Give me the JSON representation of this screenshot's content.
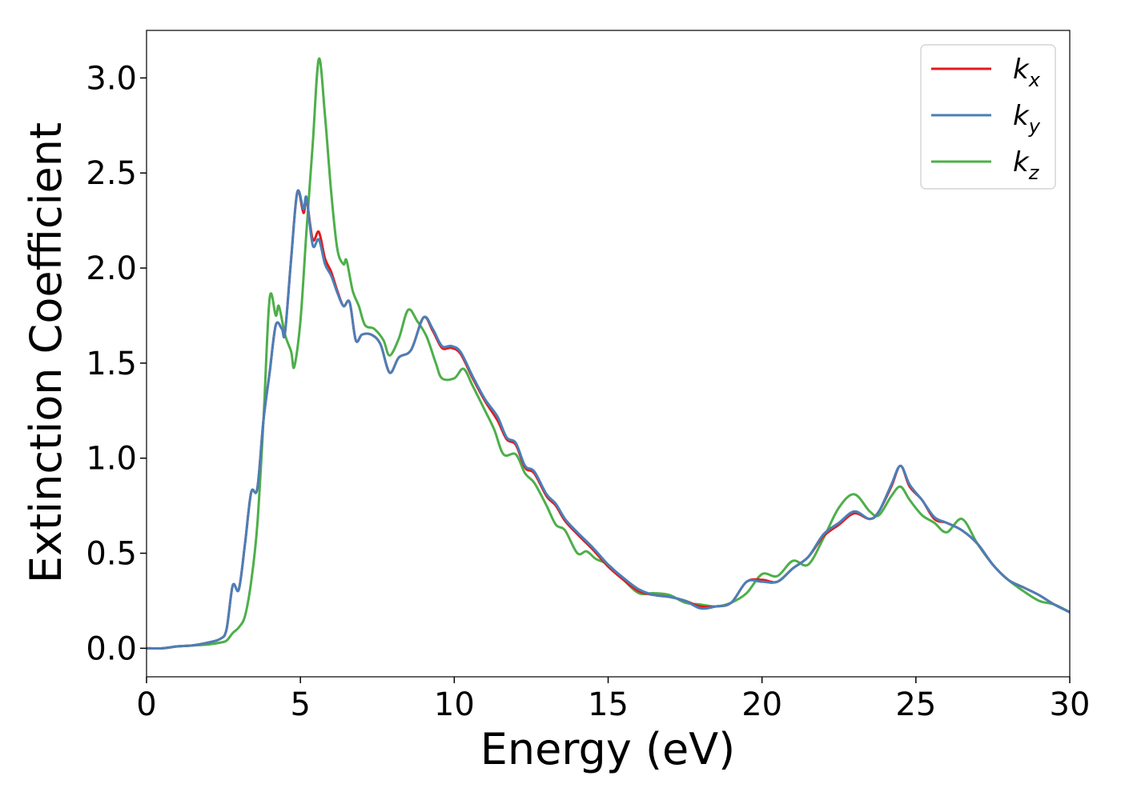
{
  "chart_data": {
    "type": "line",
    "xlabel": "Energy (eV)",
    "ylabel": "Extinction Coefficient",
    "xlim": [
      0,
      30
    ],
    "ylim": [
      -0.15,
      3.25
    ],
    "xticks": [
      0,
      5,
      10,
      15,
      20,
      25,
      30
    ],
    "yticks": [
      0.0,
      0.5,
      1.0,
      1.5,
      2.0,
      2.5,
      3.0
    ],
    "xtick_labels": [
      "0",
      "5",
      "10",
      "15",
      "20",
      "25",
      "30"
    ],
    "ytick_labels": [
      "0.0",
      "0.5",
      "1.0",
      "1.5",
      "2.0",
      "2.5",
      "3.0"
    ],
    "grid": false,
    "legend_position": "top-right",
    "series": [
      {
        "name": "k_x",
        "legend_main": "k",
        "legend_sub": "x",
        "color": "#e41a1c",
        "points": [
          [
            0,
            0.0
          ],
          [
            0.5,
            0.0
          ],
          [
            1.0,
            0.01
          ],
          [
            1.5,
            0.015
          ],
          [
            2.0,
            0.03
          ],
          [
            2.4,
            0.05
          ],
          [
            2.6,
            0.1
          ],
          [
            2.8,
            0.33
          ],
          [
            3.0,
            0.31
          ],
          [
            3.2,
            0.55
          ],
          [
            3.4,
            0.82
          ],
          [
            3.6,
            0.84
          ],
          [
            3.8,
            1.2
          ],
          [
            4.0,
            1.45
          ],
          [
            4.2,
            1.7
          ],
          [
            4.4,
            1.68
          ],
          [
            4.5,
            1.66
          ],
          [
            4.7,
            2.05
          ],
          [
            4.9,
            2.4
          ],
          [
            5.1,
            2.29
          ],
          [
            5.2,
            2.36
          ],
          [
            5.4,
            2.15
          ],
          [
            5.6,
            2.19
          ],
          [
            5.8,
            2.05
          ],
          [
            6.0,
            1.98
          ],
          [
            6.2,
            1.88
          ],
          [
            6.4,
            1.8
          ],
          [
            6.6,
            1.82
          ],
          [
            6.8,
            1.62
          ],
          [
            7.0,
            1.65
          ],
          [
            7.3,
            1.65
          ],
          [
            7.6,
            1.6
          ],
          [
            7.9,
            1.45
          ],
          [
            8.2,
            1.53
          ],
          [
            8.6,
            1.57
          ],
          [
            9.0,
            1.74
          ],
          [
            9.3,
            1.67
          ],
          [
            9.6,
            1.58
          ],
          [
            9.9,
            1.58
          ],
          [
            10.2,
            1.55
          ],
          [
            10.6,
            1.42
          ],
          [
            11.0,
            1.3
          ],
          [
            11.4,
            1.2
          ],
          [
            11.7,
            1.1
          ],
          [
            12.0,
            1.07
          ],
          [
            12.3,
            0.95
          ],
          [
            12.6,
            0.92
          ],
          [
            13.0,
            0.8
          ],
          [
            13.3,
            0.75
          ],
          [
            13.6,
            0.67
          ],
          [
            14.0,
            0.6
          ],
          [
            14.5,
            0.52
          ],
          [
            15.0,
            0.43
          ],
          [
            15.5,
            0.36
          ],
          [
            16.0,
            0.3
          ],
          [
            16.5,
            0.28
          ],
          [
            17.0,
            0.27
          ],
          [
            17.5,
            0.25
          ],
          [
            18.0,
            0.22
          ],
          [
            18.5,
            0.22
          ],
          [
            19.0,
            0.24
          ],
          [
            19.5,
            0.35
          ],
          [
            20.0,
            0.36
          ],
          [
            20.5,
            0.35
          ],
          [
            21.0,
            0.42
          ],
          [
            21.5,
            0.48
          ],
          [
            22.0,
            0.59
          ],
          [
            22.5,
            0.65
          ],
          [
            23.0,
            0.71
          ],
          [
            23.5,
            0.68
          ],
          [
            23.8,
            0.72
          ],
          [
            24.2,
            0.85
          ],
          [
            24.5,
            0.96
          ],
          [
            24.8,
            0.85
          ],
          [
            25.2,
            0.78
          ],
          [
            25.6,
            0.68
          ],
          [
            26.0,
            0.66
          ],
          [
            26.5,
            0.62
          ],
          [
            27.0,
            0.55
          ],
          [
            27.5,
            0.44
          ],
          [
            28.0,
            0.36
          ],
          [
            28.5,
            0.32
          ],
          [
            29.0,
            0.28
          ],
          [
            29.5,
            0.23
          ],
          [
            30.0,
            0.19
          ]
        ]
      },
      {
        "name": "k_y",
        "legend_main": "k",
        "legend_sub": "y",
        "color": "#4a7fb8",
        "points": [
          [
            0,
            0.0
          ],
          [
            0.5,
            0.0
          ],
          [
            1.0,
            0.01
          ],
          [
            1.5,
            0.015
          ],
          [
            2.0,
            0.03
          ],
          [
            2.4,
            0.05
          ],
          [
            2.6,
            0.1
          ],
          [
            2.8,
            0.33
          ],
          [
            3.0,
            0.31
          ],
          [
            3.2,
            0.55
          ],
          [
            3.4,
            0.82
          ],
          [
            3.6,
            0.84
          ],
          [
            3.8,
            1.2
          ],
          [
            4.0,
            1.45
          ],
          [
            4.2,
            1.7
          ],
          [
            4.4,
            1.68
          ],
          [
            4.5,
            1.66
          ],
          [
            4.7,
            2.05
          ],
          [
            4.9,
            2.4
          ],
          [
            5.1,
            2.31
          ],
          [
            5.2,
            2.37
          ],
          [
            5.4,
            2.12
          ],
          [
            5.6,
            2.15
          ],
          [
            5.8,
            2.02
          ],
          [
            6.0,
            1.96
          ],
          [
            6.2,
            1.87
          ],
          [
            6.4,
            1.8
          ],
          [
            6.6,
            1.82
          ],
          [
            6.8,
            1.62
          ],
          [
            7.0,
            1.65
          ],
          [
            7.3,
            1.65
          ],
          [
            7.6,
            1.6
          ],
          [
            7.9,
            1.45
          ],
          [
            8.2,
            1.53
          ],
          [
            8.6,
            1.57
          ],
          [
            9.0,
            1.74
          ],
          [
            9.3,
            1.68
          ],
          [
            9.6,
            1.59
          ],
          [
            9.9,
            1.59
          ],
          [
            10.2,
            1.56
          ],
          [
            10.6,
            1.43
          ],
          [
            11.0,
            1.31
          ],
          [
            11.4,
            1.22
          ],
          [
            11.7,
            1.11
          ],
          [
            12.0,
            1.08
          ],
          [
            12.3,
            0.96
          ],
          [
            12.6,
            0.93
          ],
          [
            13.0,
            0.81
          ],
          [
            13.3,
            0.76
          ],
          [
            13.6,
            0.68
          ],
          [
            14.0,
            0.61
          ],
          [
            14.5,
            0.53
          ],
          [
            15.0,
            0.44
          ],
          [
            15.5,
            0.37
          ],
          [
            16.0,
            0.31
          ],
          [
            16.5,
            0.28
          ],
          [
            17.0,
            0.27
          ],
          [
            17.5,
            0.25
          ],
          [
            18.0,
            0.21
          ],
          [
            18.5,
            0.22
          ],
          [
            19.0,
            0.24
          ],
          [
            19.5,
            0.35
          ],
          [
            20.0,
            0.35
          ],
          [
            20.5,
            0.35
          ],
          [
            21.0,
            0.42
          ],
          [
            21.5,
            0.48
          ],
          [
            22.0,
            0.6
          ],
          [
            22.5,
            0.66
          ],
          [
            23.0,
            0.72
          ],
          [
            23.5,
            0.68
          ],
          [
            23.8,
            0.72
          ],
          [
            24.2,
            0.86
          ],
          [
            24.5,
            0.96
          ],
          [
            24.8,
            0.86
          ],
          [
            25.2,
            0.78
          ],
          [
            25.6,
            0.69
          ],
          [
            26.0,
            0.66
          ],
          [
            26.5,
            0.62
          ],
          [
            27.0,
            0.55
          ],
          [
            27.5,
            0.44
          ],
          [
            28.0,
            0.36
          ],
          [
            28.5,
            0.32
          ],
          [
            29.0,
            0.28
          ],
          [
            29.5,
            0.23
          ],
          [
            30.0,
            0.19
          ]
        ]
      },
      {
        "name": "k_z",
        "legend_main": "k",
        "legend_sub": "z",
        "color": "#4daf4a",
        "points": [
          [
            0,
            0.0
          ],
          [
            0.5,
            0.0
          ],
          [
            1.0,
            0.01
          ],
          [
            1.5,
            0.015
          ],
          [
            2.0,
            0.02
          ],
          [
            2.4,
            0.03
          ],
          [
            2.6,
            0.04
          ],
          [
            2.8,
            0.08
          ],
          [
            3.0,
            0.11
          ],
          [
            3.2,
            0.17
          ],
          [
            3.4,
            0.35
          ],
          [
            3.6,
            0.65
          ],
          [
            3.8,
            1.2
          ],
          [
            4.0,
            1.84
          ],
          [
            4.2,
            1.75
          ],
          [
            4.3,
            1.8
          ],
          [
            4.5,
            1.65
          ],
          [
            4.7,
            1.56
          ],
          [
            4.8,
            1.48
          ],
          [
            5.0,
            1.72
          ],
          [
            5.2,
            2.2
          ],
          [
            5.4,
            2.65
          ],
          [
            5.6,
            3.1
          ],
          [
            5.8,
            2.8
          ],
          [
            6.0,
            2.4
          ],
          [
            6.2,
            2.1
          ],
          [
            6.4,
            2.02
          ],
          [
            6.5,
            2.04
          ],
          [
            6.7,
            1.88
          ],
          [
            6.9,
            1.8
          ],
          [
            7.1,
            1.7
          ],
          [
            7.4,
            1.68
          ],
          [
            7.7,
            1.62
          ],
          [
            7.9,
            1.54
          ],
          [
            8.2,
            1.63
          ],
          [
            8.5,
            1.78
          ],
          [
            8.8,
            1.72
          ],
          [
            9.1,
            1.64
          ],
          [
            9.4,
            1.5
          ],
          [
            9.6,
            1.42
          ],
          [
            10.0,
            1.42
          ],
          [
            10.3,
            1.47
          ],
          [
            10.6,
            1.38
          ],
          [
            11.0,
            1.25
          ],
          [
            11.3,
            1.15
          ],
          [
            11.6,
            1.02
          ],
          [
            12.0,
            1.02
          ],
          [
            12.3,
            0.92
          ],
          [
            12.6,
            0.87
          ],
          [
            13.0,
            0.75
          ],
          [
            13.3,
            0.65
          ],
          [
            13.6,
            0.62
          ],
          [
            14.0,
            0.5
          ],
          [
            14.3,
            0.51
          ],
          [
            14.6,
            0.47
          ],
          [
            15.0,
            0.44
          ],
          [
            15.5,
            0.36
          ],
          [
            16.0,
            0.29
          ],
          [
            16.5,
            0.29
          ],
          [
            17.0,
            0.28
          ],
          [
            17.5,
            0.24
          ],
          [
            18.0,
            0.23
          ],
          [
            18.5,
            0.22
          ],
          [
            19.0,
            0.24
          ],
          [
            19.5,
            0.29
          ],
          [
            20.0,
            0.39
          ],
          [
            20.5,
            0.38
          ],
          [
            21.0,
            0.46
          ],
          [
            21.5,
            0.44
          ],
          [
            22.0,
            0.58
          ],
          [
            22.5,
            0.74
          ],
          [
            23.0,
            0.81
          ],
          [
            23.5,
            0.72
          ],
          [
            23.8,
            0.7
          ],
          [
            24.2,
            0.8
          ],
          [
            24.5,
            0.85
          ],
          [
            24.8,
            0.78
          ],
          [
            25.2,
            0.7
          ],
          [
            25.6,
            0.66
          ],
          [
            26.0,
            0.61
          ],
          [
            26.5,
            0.68
          ],
          [
            27.0,
            0.55
          ],
          [
            27.5,
            0.44
          ],
          [
            28.0,
            0.36
          ],
          [
            28.5,
            0.3
          ],
          [
            29.0,
            0.25
          ],
          [
            29.5,
            0.23
          ],
          [
            30.0,
            0.19
          ]
        ]
      }
    ]
  }
}
